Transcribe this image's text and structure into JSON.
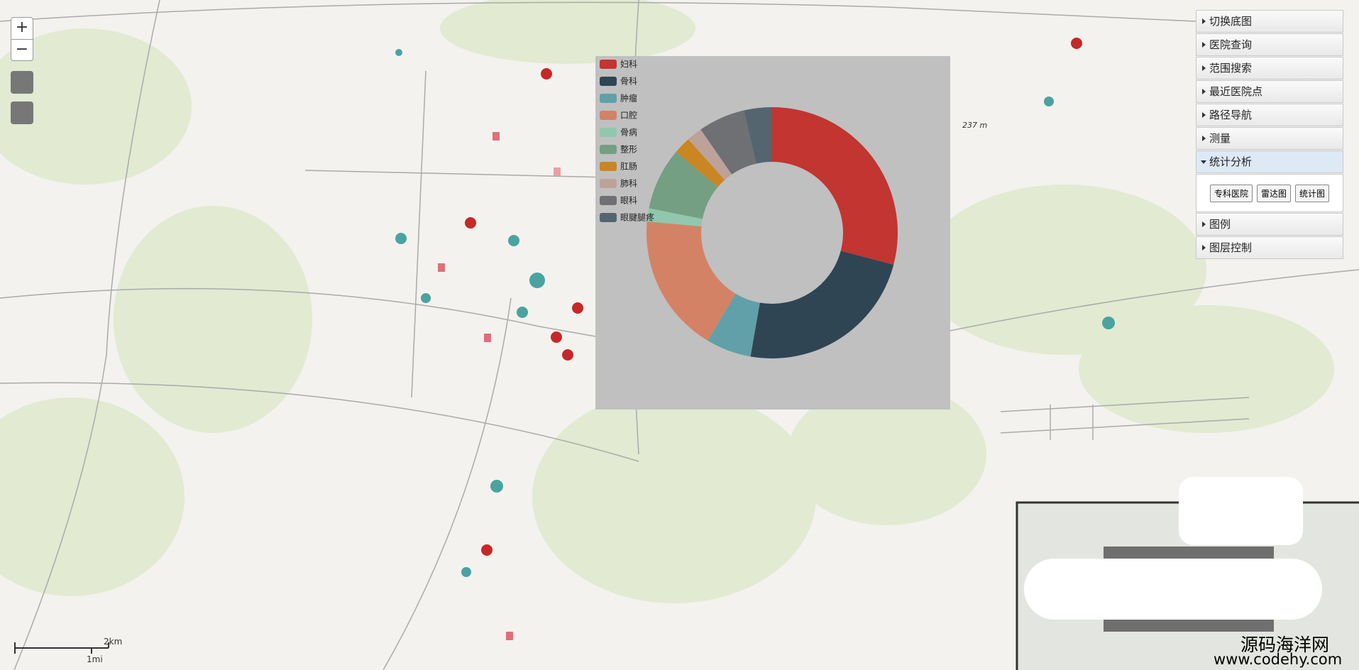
{
  "map_controls": {
    "zoom_in": "+",
    "zoom_out": "−"
  },
  "menu": {
    "items_top": [
      "切换底图",
      "医院查询",
      "范围搜索",
      "最近医院点",
      "路径导航",
      "测量",
      "统计分析"
    ],
    "buttons": [
      "专科医院",
      "雷达图",
      "统计图"
    ],
    "items_bottom": [
      "图例",
      "图层控制"
    ]
  },
  "scale": {
    "km": "2km",
    "mi": "1mi"
  },
  "elevation_label": "237 m",
  "watermark": {
    "name": "源码海洋网",
    "url": "www.codehy.com"
  },
  "chart_data": {
    "type": "pie",
    "donut": true,
    "categories": [
      "妇科",
      "骨科",
      "肿瘤",
      "口腔",
      "骨病",
      "整形",
      "肛肠",
      "肺科",
      "眼科",
      "眼腱腿疼"
    ],
    "values": [
      29,
      23.6,
      5.8,
      17.8,
      1.7,
      8,
      2.2,
      2,
      6,
      3.6
    ],
    "colors": [
      "#c23531",
      "#2f4554",
      "#61a0a8",
      "#d48265",
      "#91c7ae",
      "#749f83",
      "#ca8622",
      "#bda29a",
      "#6e7074",
      "#546570"
    ]
  }
}
